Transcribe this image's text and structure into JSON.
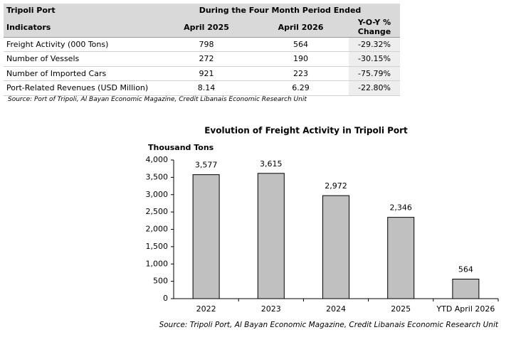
{
  "table": {
    "title": "Tripoli Port",
    "period": "During the Four Month Period Ended",
    "header": [
      "Indicators",
      "April 2025",
      "April 2026",
      "Y-O-Y % Change"
    ],
    "rows": [
      [
        "Freight Activity (000 Tons)",
        "798",
        "564",
        "-29.32%"
      ],
      [
        "Number of Vessels",
        "272",
        "190",
        "-30.15%"
      ],
      [
        "Number of Imported Cars",
        "921",
        "223",
        "-75.79%"
      ],
      [
        "Port-Related Revenues (USD Million)",
        "8.14",
        "6.29",
        "-22.80%"
      ]
    ],
    "source": "Source: Port of Tripoli, Al Bayan Economic Magazine, Credit Libanais Economic Research Unit"
  },
  "chart_data": {
    "type": "bar",
    "title": "Evolution of Freight Activity in Tripoli Port",
    "y_label": "Thousand Tons",
    "categories": [
      "2022",
      "2023",
      "2024",
      "2025",
      "YTD April 2026"
    ],
    "values": [
      3577,
      3615,
      2972,
      2346,
      564
    ],
    "value_labels": [
      "3,577",
      "3,615",
      "2,972",
      "2,346",
      "564"
    ],
    "color": "#c0c0c0",
    "ylim": [
      0,
      4000
    ],
    "yticks": [
      0,
      500,
      {
        "value": 1000,
        "label": "1,000"
      },
      {
        "value": 1500,
        "label": "1,500"
      },
      {
        "value": 2000,
        "label": "2,000"
      },
      {
        "value": 2500,
        "label": "2,500"
      },
      {
        "value": 3000,
        "label": "3,000"
      },
      {
        "value": 3500,
        "label": "3,500"
      },
      {
        "value": 4000,
        "label": "4,000"
      }
    ],
    "grid": false,
    "source": "Source: Tripoli Port, Al Bayan Economic Magazine, Credit Libanais Economic Research Unit"
  }
}
